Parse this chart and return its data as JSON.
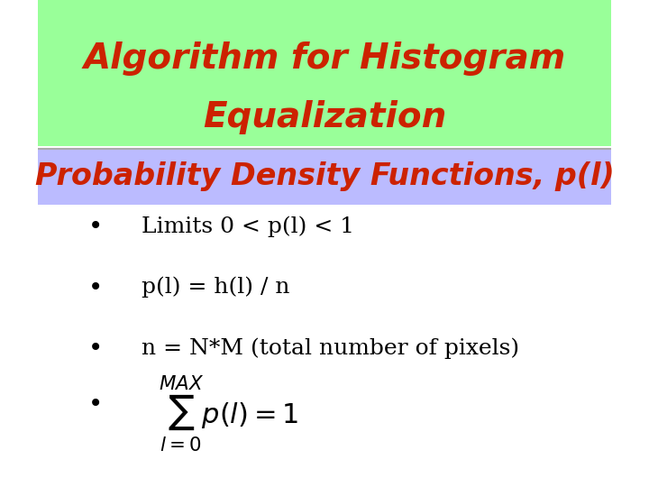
{
  "title_line1": "Algorithm for Histogram",
  "title_line2": "Equalization",
  "title_color": "#cc2200",
  "title_bg_color": "#99ff99",
  "subtitle": "Probability Density Functions, p(l)",
  "subtitle_color": "#cc2200",
  "subtitle_bg_color": "#bbbbff",
  "body_bg_color": "#ffffff",
  "bullet_color": "#000000",
  "bullet_items": [
    "Limits 0 < p(l) < 1",
    "p(l) = h(l) / n",
    "n = N*M (total number of pixels)"
  ],
  "math_bullet": true,
  "title_fontsize": 28,
  "subtitle_fontsize": 24,
  "bullet_fontsize": 18
}
